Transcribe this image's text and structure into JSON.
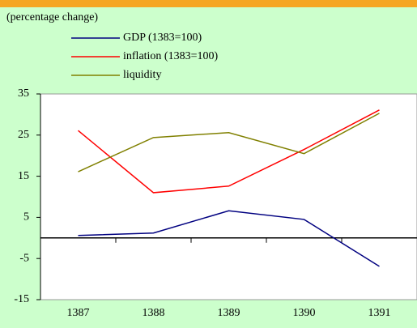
{
  "chart_data": {
    "type": "line",
    "subtitle": "(percentage change)",
    "categories": [
      "1387",
      "1388",
      "1389",
      "1390",
      "1391"
    ],
    "series": [
      {
        "name": "GDP (1383=100)",
        "color": "#000080",
        "values": [
          0.6,
          1.2,
          6.6,
          4.5,
          -6.9
        ]
      },
      {
        "name": "inflation (1383=100)",
        "color": "#ff0000",
        "values": [
          26.1,
          11,
          12.6,
          21.5,
          31.1
        ]
      },
      {
        "name": "liquidity",
        "color": "#808000",
        "values": [
          16.1,
          24.4,
          25.6,
          20.5,
          30.3
        ]
      }
    ],
    "ylim": [
      -15,
      35
    ],
    "yticks": [
      -15,
      -5,
      5,
      15,
      25,
      35
    ],
    "grid": false
  }
}
